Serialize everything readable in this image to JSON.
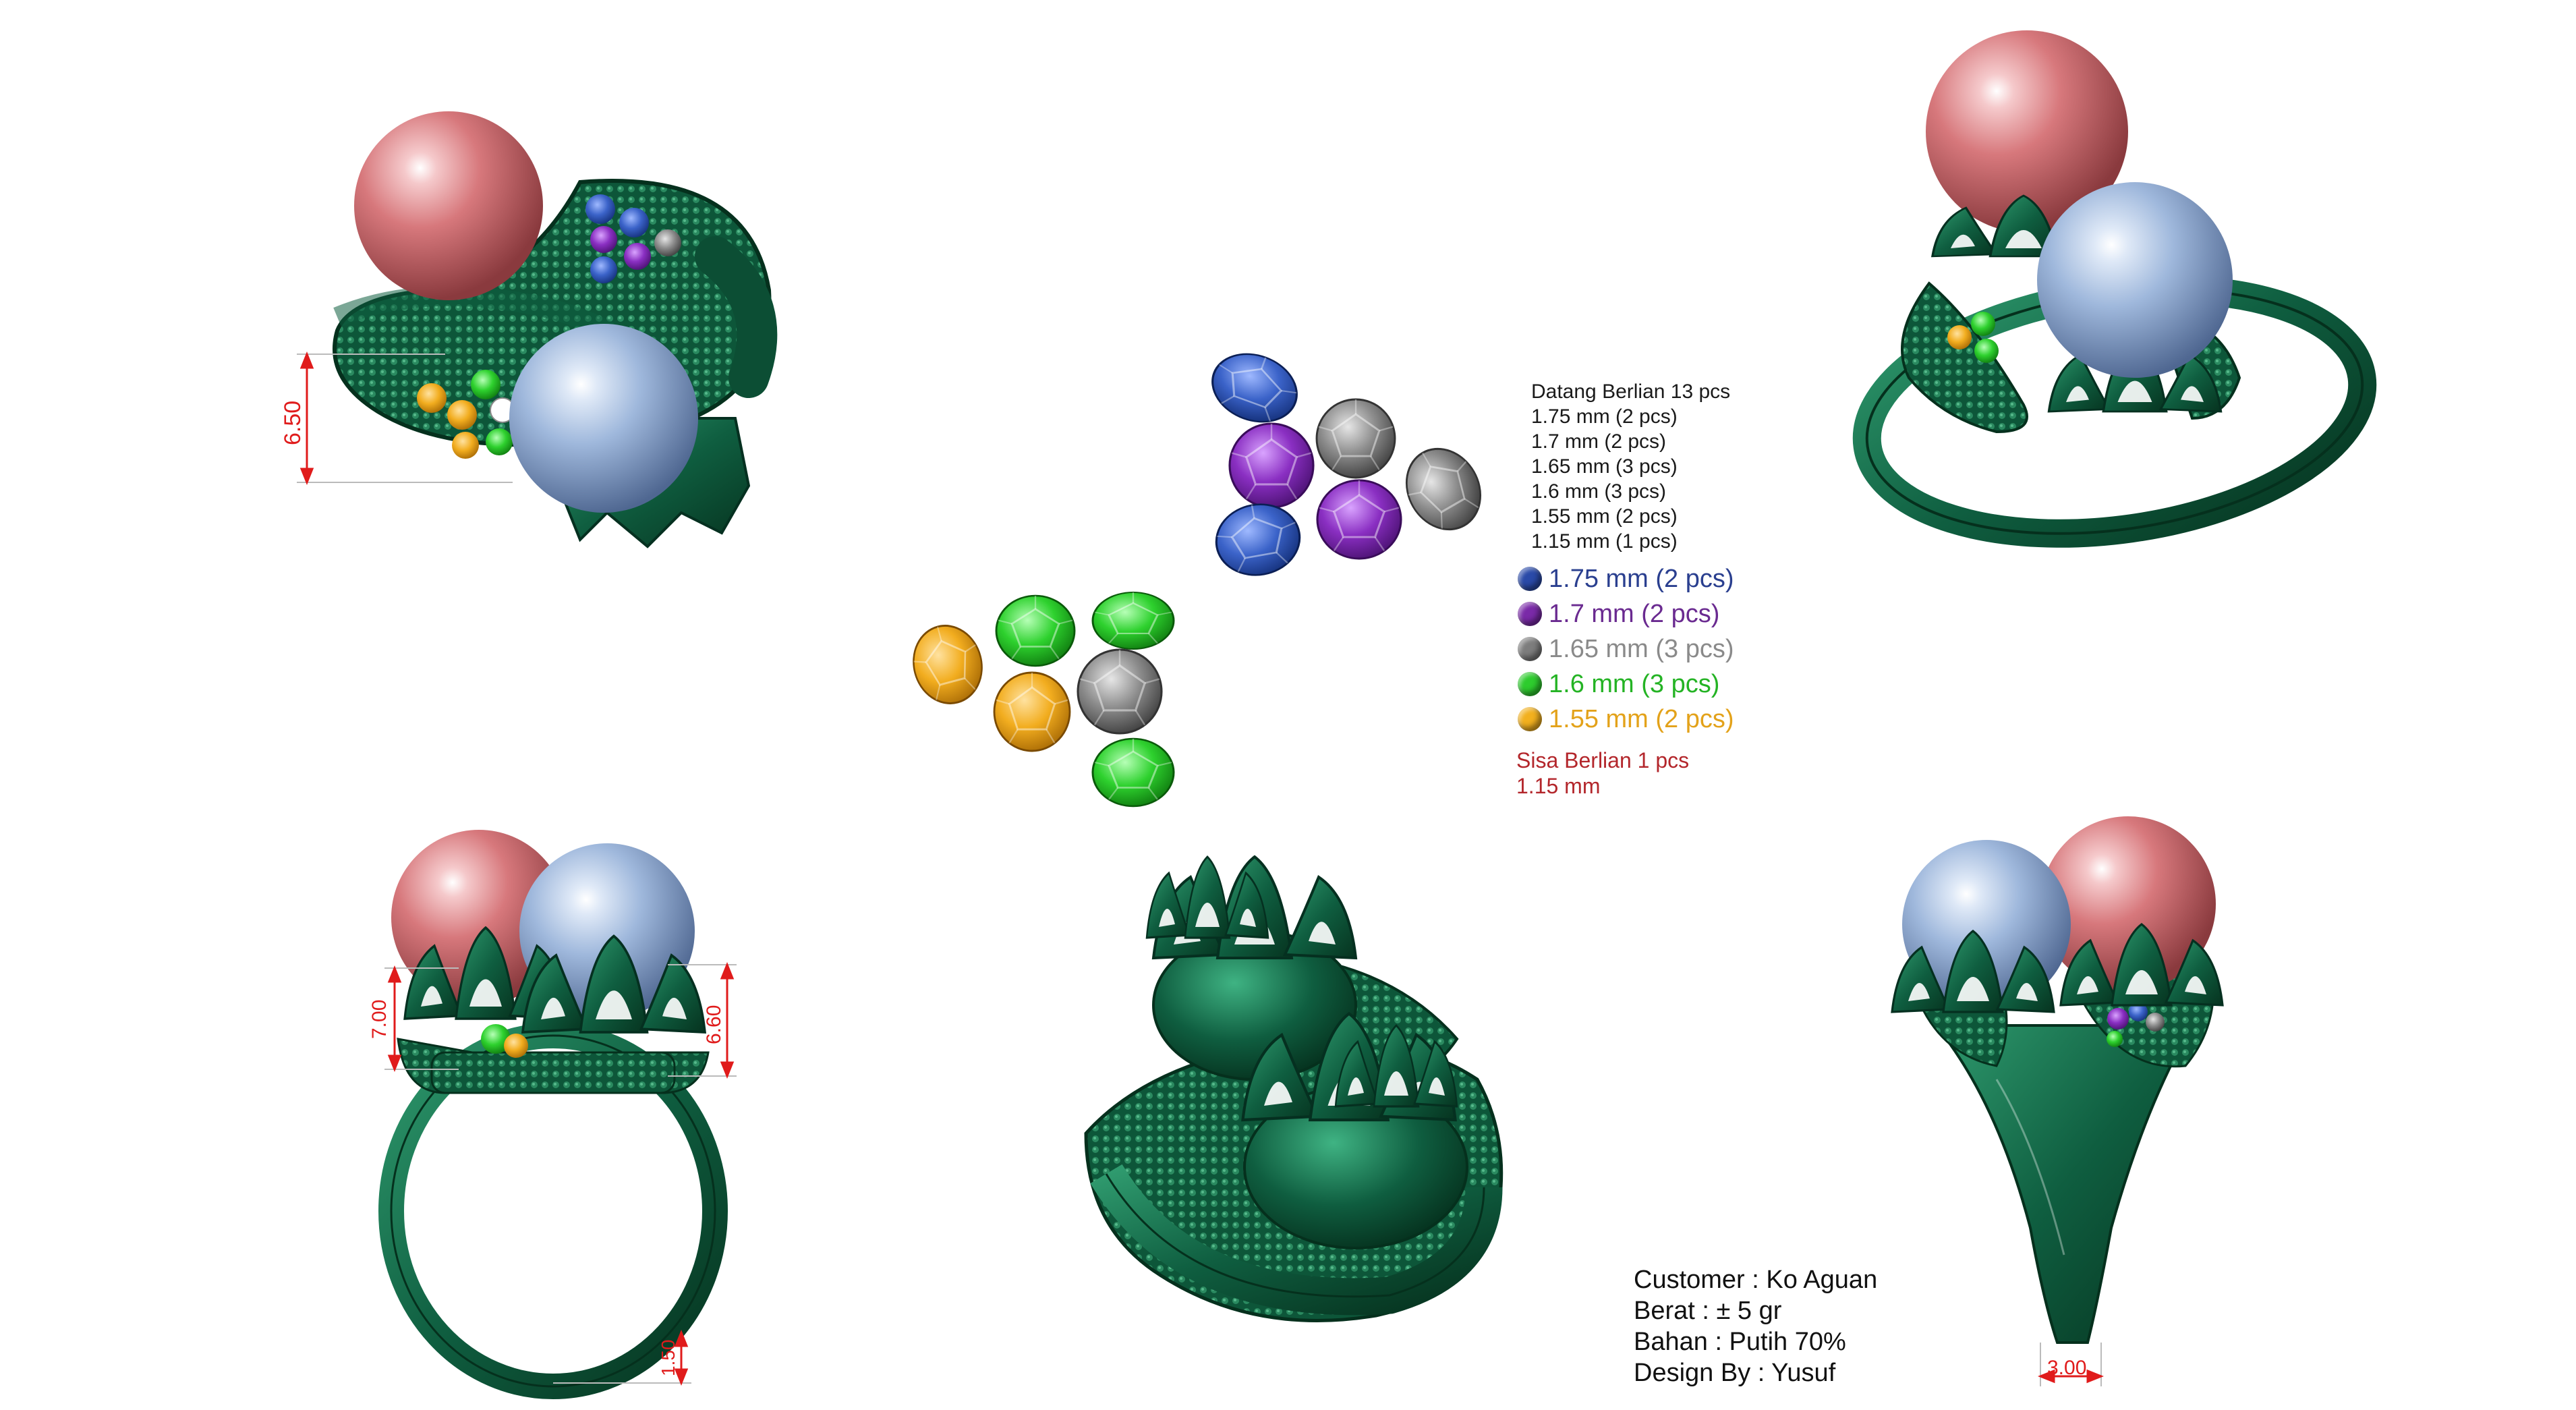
{
  "spec": {
    "heading": "Datang Berlian 13 pcs",
    "lines": [
      "1.75 mm (2 pcs)",
      "1.7 mm (2 pcs)",
      "1.65 mm (3 pcs)",
      "1.6 mm (3 pcs)",
      "1.55 mm (2 pcs)",
      "1.15 mm (1 pcs)"
    ]
  },
  "legend": [
    {
      "label": "1.75 mm (2 pcs)",
      "color": "#2a4aa8",
      "text_color": "#2a3f8f"
    },
    {
      "label": "1.7 mm (2 pcs)",
      "color": "#7a2aa8",
      "text_color": "#6a2a90"
    },
    {
      "label": "1.65 mm (3 pcs)",
      "color": "#7d7d7d",
      "text_color": "#8a8a8a"
    },
    {
      "label": "1.6 mm (3 pcs)",
      "color": "#2ecc2e",
      "text_color": "#24b324"
    },
    {
      "label": "1.55 mm (2 pcs)",
      "color": "#f2b01e",
      "text_color": "#e3a21a"
    }
  ],
  "sisa": {
    "line1": "Sisa Berlian 1 pcs",
    "line2": "1.15 mm"
  },
  "info": {
    "customer": "Customer : Ko Aguan",
    "berat": "Berat : ± 5 gr",
    "bahan": "Bahan : Putih 70%",
    "design": "Design By : Yusuf"
  },
  "dimensions": {
    "top_view_height": "6.50",
    "front_left": "7.00",
    "front_right": "6.60",
    "shank_bottom": "1.50",
    "side_bottom": "3.00"
  },
  "colors": {
    "metal": "#0f5e40",
    "pearl_pink": "#d7787c",
    "pearl_blue": "#9fb8dc",
    "dimension": "#e01b1b"
  }
}
